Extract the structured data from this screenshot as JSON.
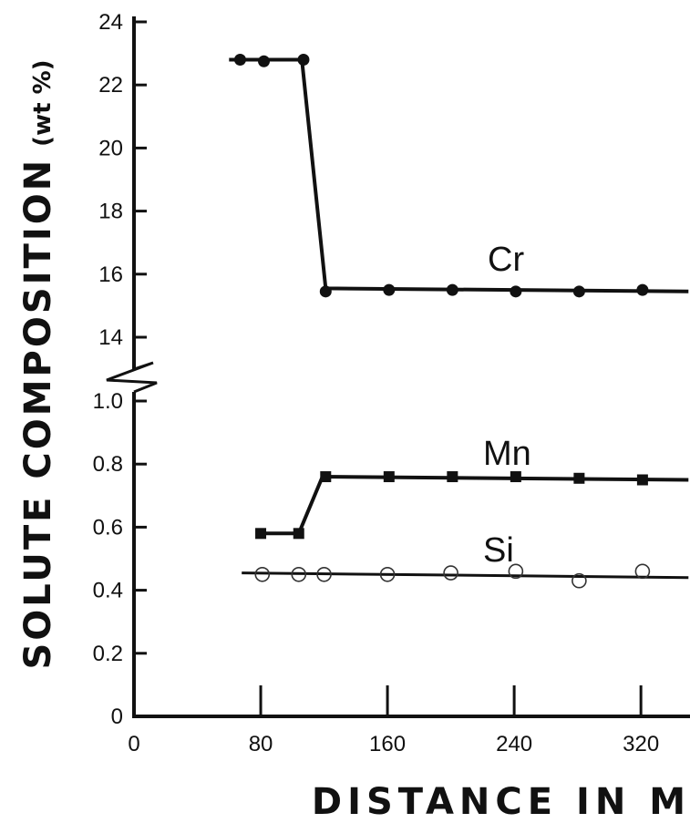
{
  "chart_data": {
    "type": "line",
    "xlabel": "DISTANCE IN M",
    "ylabel_main": "SOLUTE COMPOSITION",
    "ylabel_unit": "(wt %)",
    "xlim": [
      0,
      350
    ],
    "xticks": [
      0,
      80,
      160,
      240,
      320
    ],
    "y_axis_break": true,
    "ylim_lower": [
      0,
      1.0
    ],
    "ylim_upper": [
      14,
      24
    ],
    "yticks_lower": [
      "0",
      "0.2",
      "0.4",
      "0.6",
      "0.8",
      "1.0"
    ],
    "yticks_upper": [
      "14",
      "16",
      "18",
      "20",
      "22",
      "24"
    ],
    "series": [
      {
        "name": "Cr",
        "segment": "upper",
        "marker": "filled-circle",
        "points": [
          [
            67,
            22.8
          ],
          [
            82,
            22.75
          ],
          [
            107,
            22.8
          ],
          [
            121,
            15.45
          ],
          [
            161,
            15.5
          ],
          [
            201,
            15.5
          ],
          [
            241,
            15.45
          ],
          [
            281,
            15.45
          ],
          [
            321,
            15.5
          ]
        ],
        "line": [
          [
            60,
            22.8
          ],
          [
            106,
            22.8
          ],
          [
            121,
            15.55
          ],
          [
            350,
            15.45
          ]
        ]
      },
      {
        "name": "Mn",
        "segment": "lower",
        "marker": "filled-square",
        "points": [
          [
            80,
            0.58
          ],
          [
            104,
            0.58
          ],
          [
            121,
            0.76
          ],
          [
            161,
            0.76
          ],
          [
            201,
            0.76
          ],
          [
            241,
            0.76
          ],
          [
            281,
            0.755
          ],
          [
            321,
            0.75
          ]
        ],
        "line": [
          [
            78,
            0.58
          ],
          [
            104,
            0.58
          ],
          [
            119,
            0.76
          ],
          [
            350,
            0.75
          ]
        ]
      },
      {
        "name": "Si",
        "segment": "lower",
        "marker": "open-circle",
        "points": [
          [
            81,
            0.45
          ],
          [
            104,
            0.45
          ],
          [
            120,
            0.45
          ],
          [
            160,
            0.45
          ],
          [
            200,
            0.455
          ],
          [
            241,
            0.46
          ],
          [
            281,
            0.43
          ],
          [
            321,
            0.46
          ]
        ],
        "line": [
          [
            68,
            0.455
          ],
          [
            350,
            0.44
          ]
        ]
      }
    ]
  }
}
